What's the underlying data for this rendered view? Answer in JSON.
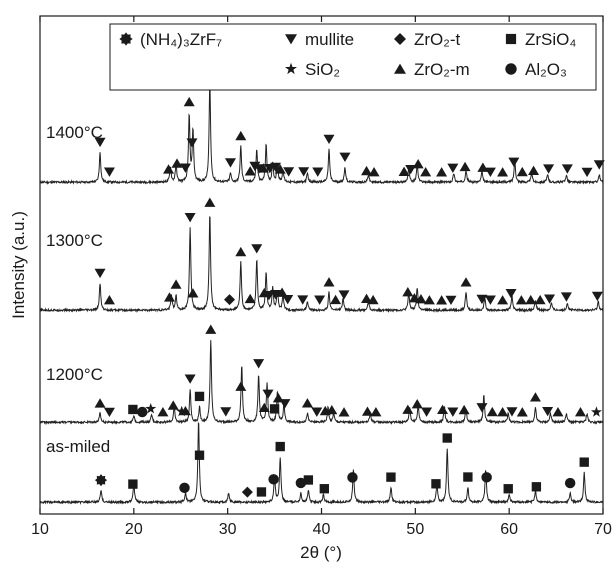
{
  "chart_data": {
    "type": "line",
    "xlabel": "2θ (°)",
    "ylabel": "Intensity (a.u.)",
    "xlim": [
      10,
      70
    ],
    "x_ticks": [
      10,
      20,
      30,
      40,
      50,
      60,
      70
    ],
    "legend": {
      "placement": "top",
      "entries": [
        {
          "marker": "gear",
          "label": "(NH₄)₃ZrF₇"
        },
        {
          "marker": "tri-down",
          "label": "mullite"
        },
        {
          "marker": "diamond",
          "label": "ZrO₂-t"
        },
        {
          "marker": "square",
          "label": "ZrSiO₄"
        },
        {
          "marker": "star",
          "label": "SiO₂"
        },
        {
          "marker": "tri-up",
          "label": "ZrO₂-m"
        },
        {
          "marker": "circle",
          "label": "Al₂O₃"
        }
      ]
    },
    "series": [
      {
        "name": "1400°C",
        "peaks": [
          {
            "x": 16.4,
            "h": 0.2
          },
          {
            "x": 23.9,
            "h": 0.1
          },
          {
            "x": 24.5,
            "h": 0.12
          },
          {
            "x": 25.9,
            "h": 0.45
          },
          {
            "x": 26.3,
            "h": 0.35
          },
          {
            "x": 28.1,
            "h": 0.68
          },
          {
            "x": 30.3,
            "h": 0.06
          },
          {
            "x": 31.4,
            "h": 0.24
          },
          {
            "x": 33.1,
            "h": 0.22
          },
          {
            "x": 34.1,
            "h": 0.25
          },
          {
            "x": 34.8,
            "h": 0.12
          },
          {
            "x": 35.3,
            "h": 0.12
          },
          {
            "x": 35.9,
            "h": 0.08
          },
          {
            "x": 38.5,
            "h": 0.06
          },
          {
            "x": 40.8,
            "h": 0.22
          },
          {
            "x": 42.5,
            "h": 0.1
          },
          {
            "x": 45.0,
            "h": 0.05
          },
          {
            "x": 49.3,
            "h": 0.1
          },
          {
            "x": 50.2,
            "h": 0.12
          },
          {
            "x": 54.1,
            "h": 0.06
          },
          {
            "x": 55.4,
            "h": 0.08
          },
          {
            "x": 57.1,
            "h": 0.07
          },
          {
            "x": 60.6,
            "h": 0.15
          },
          {
            "x": 62.4,
            "h": 0.06
          },
          {
            "x": 64.1,
            "h": 0.05
          },
          {
            "x": 66.1,
            "h": 0.05
          },
          {
            "x": 69.6,
            "h": 0.05
          }
        ]
      },
      {
        "name": "1300°C",
        "peaks": [
          {
            "x": 16.4,
            "h": 0.18
          },
          {
            "x": 24.0,
            "h": 0.1
          },
          {
            "x": 24.5,
            "h": 0.1
          },
          {
            "x": 26.0,
            "h": 0.55
          },
          {
            "x": 28.1,
            "h": 0.65
          },
          {
            "x": 31.4,
            "h": 0.32
          },
          {
            "x": 33.1,
            "h": 0.34
          },
          {
            "x": 34.1,
            "h": 0.25
          },
          {
            "x": 34.8,
            "h": 0.15
          },
          {
            "x": 35.3,
            "h": 0.13
          },
          {
            "x": 35.9,
            "h": 0.1
          },
          {
            "x": 38.5,
            "h": 0.06
          },
          {
            "x": 40.8,
            "h": 0.12
          },
          {
            "x": 42.3,
            "h": 0.08
          },
          {
            "x": 45.0,
            "h": 0.06
          },
          {
            "x": 49.3,
            "h": 0.12
          },
          {
            "x": 50.2,
            "h": 0.15
          },
          {
            "x": 55.4,
            "h": 0.12
          },
          {
            "x": 57.4,
            "h": 0.08
          },
          {
            "x": 60.3,
            "h": 0.1
          },
          {
            "x": 62.8,
            "h": 0.06
          },
          {
            "x": 64.5,
            "h": 0.05
          },
          {
            "x": 66.2,
            "h": 0.05
          },
          {
            "x": 69.5,
            "h": 0.06
          }
        ]
      },
      {
        "name": "1200°C",
        "peaks": [
          {
            "x": 16.4,
            "h": 0.06
          },
          {
            "x": 20.0,
            "h": 0.04
          },
          {
            "x": 21.9,
            "h": 0.05
          },
          {
            "x": 24.3,
            "h": 0.1
          },
          {
            "x": 26.0,
            "h": 0.22
          },
          {
            "x": 27.0,
            "h": 0.1
          },
          {
            "x": 28.2,
            "h": 0.55
          },
          {
            "x": 31.5,
            "h": 0.38
          },
          {
            "x": 33.3,
            "h": 0.32
          },
          {
            "x": 34.2,
            "h": 0.26
          },
          {
            "x": 35.3,
            "h": 0.2
          },
          {
            "x": 36.0,
            "h": 0.12
          },
          {
            "x": 38.5,
            "h": 0.06
          },
          {
            "x": 40.7,
            "h": 0.1
          },
          {
            "x": 41.3,
            "h": 0.06
          },
          {
            "x": 45.2,
            "h": 0.06
          },
          {
            "x": 49.4,
            "h": 0.1
          },
          {
            "x": 50.3,
            "h": 0.12
          },
          {
            "x": 53.1,
            "h": 0.1
          },
          {
            "x": 55.4,
            "h": 0.09
          },
          {
            "x": 57.3,
            "h": 0.18
          },
          {
            "x": 59.9,
            "h": 0.06
          },
          {
            "x": 62.8,
            "h": 0.1
          },
          {
            "x": 64.4,
            "h": 0.06
          },
          {
            "x": 66.1,
            "h": 0.06
          },
          {
            "x": 68.3,
            "h": 0.06
          }
        ]
      },
      {
        "name": "as-miled",
        "peaks": [
          {
            "x": 16.5,
            "h": 0.08
          },
          {
            "x": 20.0,
            "h": 0.12
          },
          {
            "x": 25.5,
            "h": 0.06
          },
          {
            "x": 26.9,
            "h": 0.55
          },
          {
            "x": 30.1,
            "h": 0.06
          },
          {
            "x": 35.0,
            "h": 0.18
          },
          {
            "x": 35.6,
            "h": 0.3
          },
          {
            "x": 37.8,
            "h": 0.06
          },
          {
            "x": 38.6,
            "h": 0.08
          },
          {
            "x": 40.2,
            "h": 0.05
          },
          {
            "x": 43.4,
            "h": 0.22
          },
          {
            "x": 47.4,
            "h": 0.1
          },
          {
            "x": 52.3,
            "h": 0.12
          },
          {
            "x": 53.4,
            "h": 0.36
          },
          {
            "x": 55.6,
            "h": 0.1
          },
          {
            "x": 57.5,
            "h": 0.22
          },
          {
            "x": 60.0,
            "h": 0.05
          },
          {
            "x": 62.8,
            "h": 0.08
          },
          {
            "x": 66.5,
            "h": 0.06
          },
          {
            "x": 68.0,
            "h": 0.2
          }
        ]
      }
    ],
    "markers": {
      "1400°C": [
        {
          "x": 16.4,
          "s": "tri-down"
        },
        {
          "x": 17.4,
          "s": "tri-down"
        },
        {
          "x": 23.7,
          "s": "tri-up"
        },
        {
          "x": 24.6,
          "s": "tri-up"
        },
        {
          "x": 25.5,
          "s": "tri-down"
        },
        {
          "x": 25.9,
          "s": "tri-up"
        },
        {
          "x": 26.2,
          "s": "tri-down"
        },
        {
          "x": 28.1,
          "s": "tri-up"
        },
        {
          "x": 30.3,
          "s": "tri-down"
        },
        {
          "x": 31.4,
          "s": "tri-up"
        },
        {
          "x": 32.4,
          "s": "tri-up"
        },
        {
          "x": 32.9,
          "s": "tri-down"
        },
        {
          "x": 33.4,
          "s": "tri-down"
        },
        {
          "x": 33.8,
          "s": "tri-up"
        },
        {
          "x": 34.5,
          "s": "tri-down"
        },
        {
          "x": 35.1,
          "s": "tri-down"
        },
        {
          "x": 35.6,
          "s": "tri-up"
        },
        {
          "x": 36.5,
          "s": "tri-down"
        },
        {
          "x": 38.1,
          "s": "tri-down"
        },
        {
          "x": 39.6,
          "s": "tri-down"
        },
        {
          "x": 40.8,
          "s": "tri-down"
        },
        {
          "x": 42.5,
          "s": "tri-down"
        },
        {
          "x": 44.8,
          "s": "tri-up"
        },
        {
          "x": 45.6,
          "s": "tri-up"
        },
        {
          "x": 48.8,
          "s": "tri-up"
        },
        {
          "x": 49.5,
          "s": "tri-down"
        },
        {
          "x": 50.3,
          "s": "tri-up"
        },
        {
          "x": 51.1,
          "s": "tri-up"
        },
        {
          "x": 52.8,
          "s": "tri-up"
        },
        {
          "x": 54.0,
          "s": "tri-down"
        },
        {
          "x": 55.3,
          "s": "tri-up"
        },
        {
          "x": 57.2,
          "s": "tri-up"
        },
        {
          "x": 58.0,
          "s": "tri-down"
        },
        {
          "x": 59.3,
          "s": "tri-up"
        },
        {
          "x": 60.5,
          "s": "tri-down"
        },
        {
          "x": 61.4,
          "s": "tri-up"
        },
        {
          "x": 62.6,
          "s": "tri-up"
        },
        {
          "x": 64.2,
          "s": "tri-down"
        },
        {
          "x": 66.2,
          "s": "tri-down"
        },
        {
          "x": 68.3,
          "s": "tri-down"
        },
        {
          "x": 69.6,
          "s": "tri-down"
        }
      ],
      "1300°C": [
        {
          "x": 16.4,
          "s": "tri-down"
        },
        {
          "x": 17.4,
          "s": "tri-up"
        },
        {
          "x": 23.8,
          "s": "tri-up"
        },
        {
          "x": 24.5,
          "s": "tri-up"
        },
        {
          "x": 26.0,
          "s": "tri-down"
        },
        {
          "x": 26.3,
          "s": "tri-up"
        },
        {
          "x": 28.1,
          "s": "tri-up"
        },
        {
          "x": 30.2,
          "s": "diamond"
        },
        {
          "x": 31.4,
          "s": "tri-up"
        },
        {
          "x": 32.4,
          "s": "tri-up"
        },
        {
          "x": 33.1,
          "s": "tri-down"
        },
        {
          "x": 33.9,
          "s": "tri-up"
        },
        {
          "x": 34.4,
          "s": "tri-down"
        },
        {
          "x": 35.1,
          "s": "tri-down"
        },
        {
          "x": 35.8,
          "s": "tri-up"
        },
        {
          "x": 36.4,
          "s": "tri-down"
        },
        {
          "x": 38.0,
          "s": "tri-down"
        },
        {
          "x": 39.8,
          "s": "tri-down"
        },
        {
          "x": 40.8,
          "s": "tri-up"
        },
        {
          "x": 41.5,
          "s": "tri-up"
        },
        {
          "x": 42.4,
          "s": "tri-down"
        },
        {
          "x": 44.8,
          "s": "tri-up"
        },
        {
          "x": 45.5,
          "s": "tri-up"
        },
        {
          "x": 49.2,
          "s": "tri-up"
        },
        {
          "x": 49.9,
          "s": "tri-up"
        },
        {
          "x": 50.6,
          "s": "tri-up"
        },
        {
          "x": 51.5,
          "s": "tri-up"
        },
        {
          "x": 52.8,
          "s": "tri-up"
        },
        {
          "x": 53.8,
          "s": "tri-down"
        },
        {
          "x": 55.4,
          "s": "tri-up"
        },
        {
          "x": 57.1,
          "s": "tri-down"
        },
        {
          "x": 58.0,
          "s": "tri-down"
        },
        {
          "x": 59.3,
          "s": "tri-up"
        },
        {
          "x": 60.2,
          "s": "tri-down"
        },
        {
          "x": 61.3,
          "s": "tri-up"
        },
        {
          "x": 62.3,
          "s": "tri-up"
        },
        {
          "x": 63.3,
          "s": "tri-up"
        },
        {
          "x": 64.3,
          "s": "tri-down"
        },
        {
          "x": 66.1,
          "s": "tri-down"
        },
        {
          "x": 69.4,
          "s": "tri-down"
        }
      ],
      "1200°C": [
        {
          "x": 16.4,
          "s": "tri-up"
        },
        {
          "x": 17.4,
          "s": "tri-down"
        },
        {
          "x": 19.9,
          "s": "square"
        },
        {
          "x": 20.9,
          "s": "circle"
        },
        {
          "x": 21.8,
          "s": "star"
        },
        {
          "x": 23.1,
          "s": "tri-up"
        },
        {
          "x": 24.2,
          "s": "tri-up"
        },
        {
          "x": 25.1,
          "s": "star"
        },
        {
          "x": 25.5,
          "s": "tri-up"
        },
        {
          "x": 26.0,
          "s": "tri-down"
        },
        {
          "x": 27.0,
          "s": "square"
        },
        {
          "x": 28.2,
          "s": "tri-up"
        },
        {
          "x": 29.8,
          "s": "tri-down"
        },
        {
          "x": 31.4,
          "s": "tri-up"
        },
        {
          "x": 33.3,
          "s": "tri-down"
        },
        {
          "x": 33.9,
          "s": "tri-up"
        },
        {
          "x": 34.3,
          "s": "tri-down"
        },
        {
          "x": 35.0,
          "s": "square"
        },
        {
          "x": 35.4,
          "s": "tri-up"
        },
        {
          "x": 36.1,
          "s": "tri-down"
        },
        {
          "x": 38.5,
          "s": "tri-up"
        },
        {
          "x": 39.5,
          "s": "tri-down"
        },
        {
          "x": 40.4,
          "s": "tri-up"
        },
        {
          "x": 41.1,
          "s": "tri-up"
        },
        {
          "x": 42.4,
          "s": "tri-up"
        },
        {
          "x": 44.9,
          "s": "tri-up"
        },
        {
          "x": 45.8,
          "s": "tri-up"
        },
        {
          "x": 49.2,
          "s": "tri-up"
        },
        {
          "x": 50.2,
          "s": "tri-up"
        },
        {
          "x": 51.2,
          "s": "tri-down"
        },
        {
          "x": 52.9,
          "s": "tri-up"
        },
        {
          "x": 54.0,
          "s": "tri-down"
        },
        {
          "x": 55.2,
          "s": "tri-up"
        },
        {
          "x": 57.1,
          "s": "tri-down"
        },
        {
          "x": 58.2,
          "s": "tri-up"
        },
        {
          "x": 59.3,
          "s": "tri-up"
        },
        {
          "x": 60.3,
          "s": "tri-down"
        },
        {
          "x": 61.4,
          "s": "tri-up"
        },
        {
          "x": 62.8,
          "s": "tri-up"
        },
        {
          "x": 64.1,
          "s": "tri-down"
        },
        {
          "x": 65.2,
          "s": "tri-up"
        },
        {
          "x": 67.6,
          "s": "tri-up"
        },
        {
          "x": 69.3,
          "s": "star"
        }
      ],
      "as-miled": [
        {
          "x": 16.5,
          "s": "gear"
        },
        {
          "x": 19.9,
          "s": "square"
        },
        {
          "x": 25.4,
          "s": "circle"
        },
        {
          "x": 27.0,
          "s": "square"
        },
        {
          "x": 32.1,
          "s": "diamond"
        },
        {
          "x": 33.6,
          "s": "square"
        },
        {
          "x": 34.9,
          "s": "circle"
        },
        {
          "x": 35.6,
          "s": "square"
        },
        {
          "x": 37.8,
          "s": "circle"
        },
        {
          "x": 38.6,
          "s": "square"
        },
        {
          "x": 40.3,
          "s": "square"
        },
        {
          "x": 43.3,
          "s": "circle"
        },
        {
          "x": 47.4,
          "s": "square"
        },
        {
          "x": 52.2,
          "s": "square"
        },
        {
          "x": 53.4,
          "s": "square"
        },
        {
          "x": 55.6,
          "s": "square"
        },
        {
          "x": 57.6,
          "s": "circle"
        },
        {
          "x": 59.9,
          "s": "square"
        },
        {
          "x": 62.9,
          "s": "square"
        },
        {
          "x": 66.5,
          "s": "circle"
        },
        {
          "x": 68.0,
          "s": "square"
        }
      ]
    },
    "grid": false
  }
}
